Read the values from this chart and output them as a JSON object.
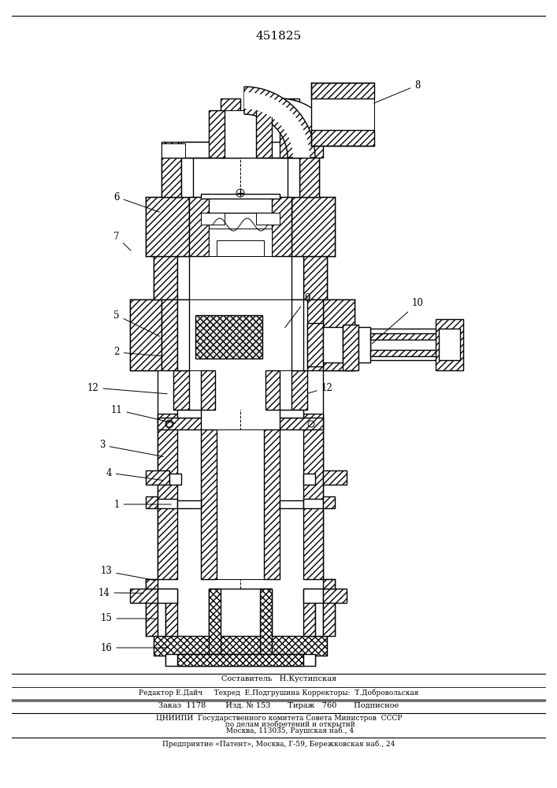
{
  "patent_number": "451825",
  "background_color": "#ffffff",
  "line_color": "#000000",
  "footer_lines": [
    "Составитель   Н.Кустипская",
    "Редактор Е.Дайч     Техред  Е.Подгрушина Корректоры:  Т.Добровольская",
    "Заказ  1178        Изд. № 153       Тираж   760       Подписное",
    "ЦНИИПИ  Государственного комитета Совета Министров  СССР",
    "          по делам изобретений и открытий",
    "          Москва, 113035, Раушская наб., 4",
    "Предприятие «Патент», Москва, Г-59, Бережковская наб., 24"
  ],
  "fig_width": 7.07,
  "fig_height": 10.0
}
